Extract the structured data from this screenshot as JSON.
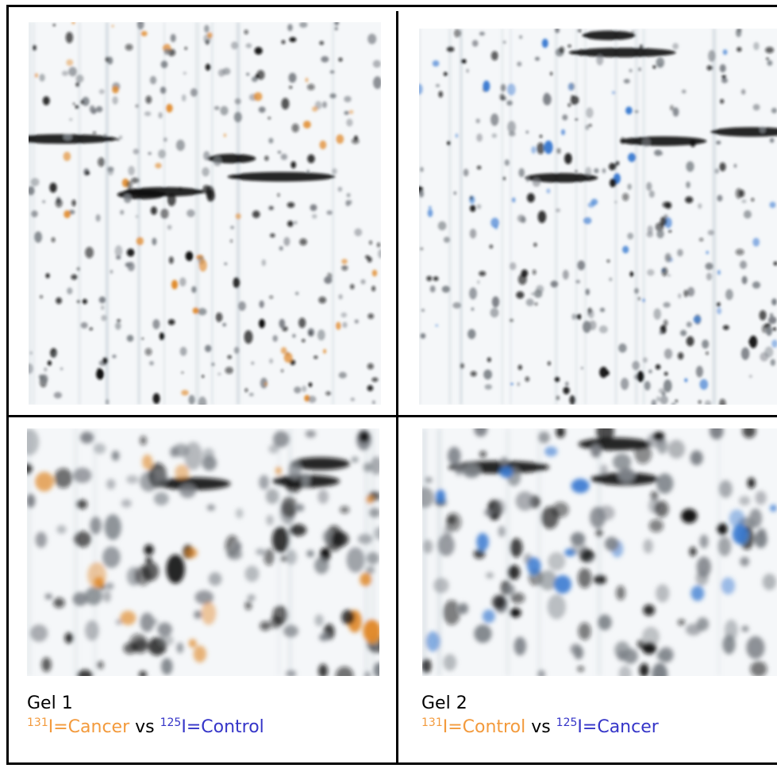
{
  "panels": [
    {
      "title": "Gel 1",
      "caption": {
        "isotope_a": "131",
        "label_a": "I=Cancer",
        "joiner": "vs",
        "isotope_b": "125",
        "label_b": "I=Control"
      }
    },
    {
      "title": "Gel 2",
      "caption": {
        "isotope_a": "131",
        "label_a": "I=Control",
        "joiner": "vs",
        "isotope_b": "125",
        "label_b": "I=Cancer"
      }
    }
  ]
}
